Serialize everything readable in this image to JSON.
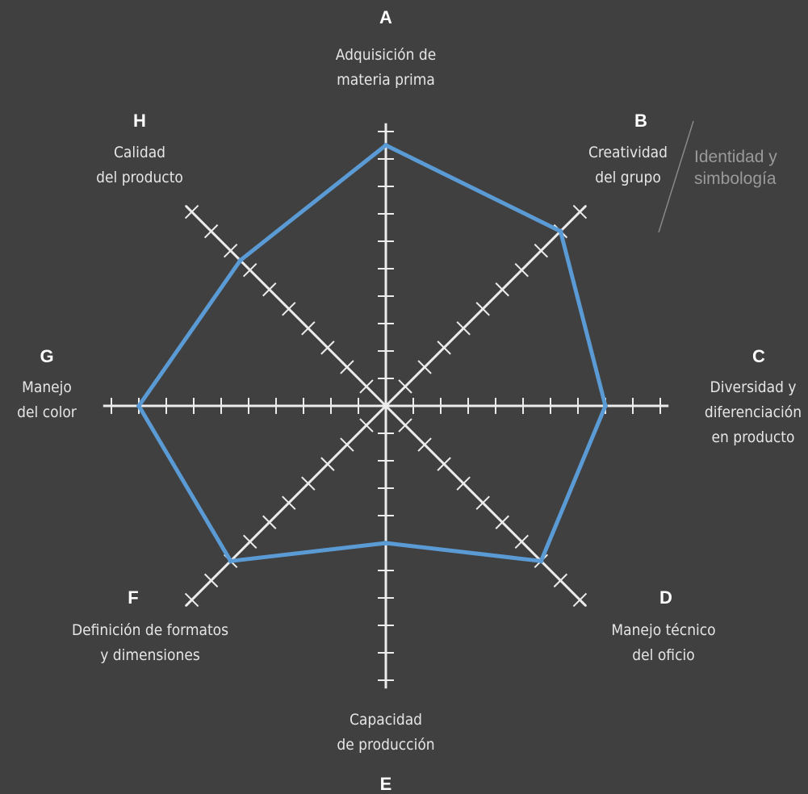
{
  "chart_data": {
    "type": "radar",
    "scale_max": 10,
    "grid": false,
    "axes": [
      {
        "letter": "A",
        "label_lines": [
          "Adquisición de",
          "materia prima"
        ]
      },
      {
        "letter": "B",
        "label_lines": [
          "Creatividad",
          "del grupo"
        ]
      },
      {
        "letter": "C",
        "label_lines": [
          "Diversidad y",
          "diferenciación",
          "en producto"
        ]
      },
      {
        "letter": "D",
        "label_lines": [
          "Manejo técnico",
          "del oficio"
        ]
      },
      {
        "letter": "E",
        "label_lines": [
          "Capacidad",
          "de producción"
        ]
      },
      {
        "letter": "F",
        "label_lines": [
          "Definición de formatos",
          "y dimensiones"
        ]
      },
      {
        "letter": "G",
        "label_lines": [
          "Manejo",
          "del color"
        ]
      },
      {
        "letter": "H",
        "label_lines": [
          "Calidad",
          "del producto"
        ]
      }
    ],
    "series": [
      {
        "values": [
          9.5,
          9,
          8,
          8,
          5,
          8,
          9,
          7.5
        ],
        "color": "#5b9bd5"
      }
    ],
    "group_label": {
      "lines": [
        "Identidad y",
        "simbología"
      ],
      "axes": [
        "B"
      ],
      "color": "#9a9a9a"
    },
    "colors": {
      "background": "#404040",
      "axis": "#ececec",
      "series": "#5b9bd5",
      "letter": "#ffffff",
      "label": "#e6e6e6"
    }
  }
}
